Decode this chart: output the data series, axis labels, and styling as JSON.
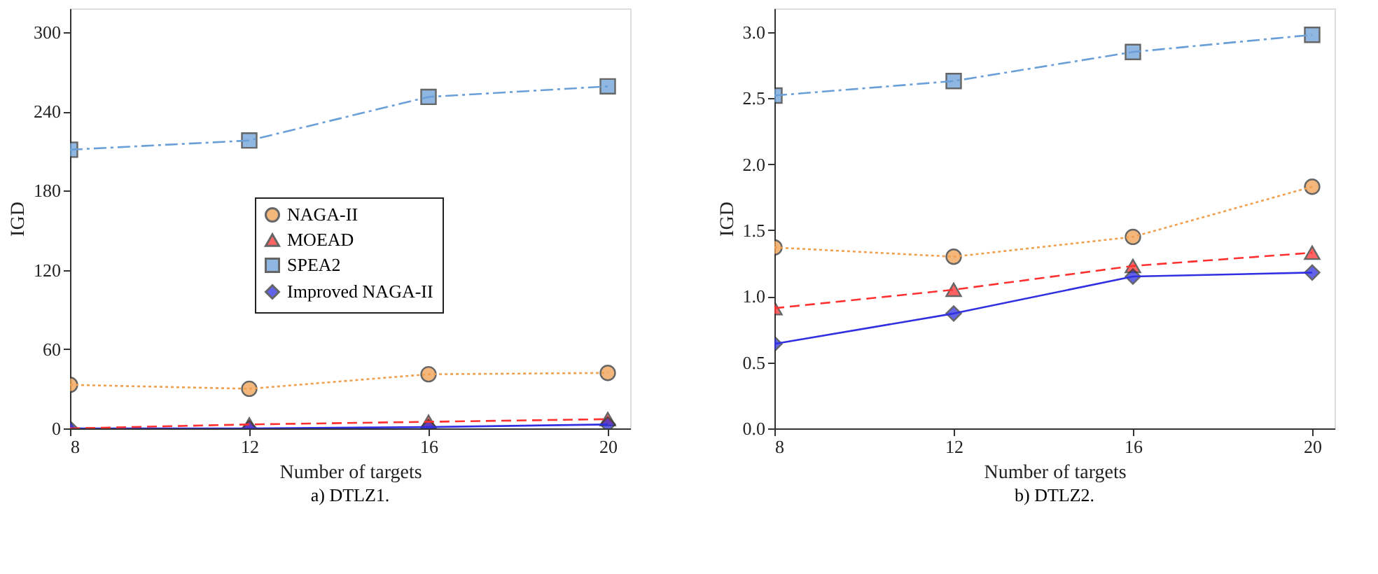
{
  "chart_data": [
    {
      "type": "line",
      "title": "a) DTLZ1.",
      "xlabel": "Number of targets",
      "ylabel": "IGD",
      "x": [
        8,
        12,
        16,
        20
      ],
      "xlim": [
        8,
        20.5
      ],
      "xticks": [
        8,
        12,
        16,
        20
      ],
      "ylim": [
        0,
        318
      ],
      "yticks": [
        0,
        60,
        120,
        180,
        240,
        300
      ],
      "grid": false,
      "legend": "center right",
      "series": [
        {
          "name": "NAGA-II",
          "color": "#f0a050",
          "marker": "circle",
          "line_style": "dotted",
          "values": [
            33,
            30,
            41,
            42
          ]
        },
        {
          "name": "MOEAD",
          "color": "#ff3030",
          "marker": "triangle",
          "line_style": "dashed",
          "values": [
            0,
            3,
            5,
            7
          ]
        },
        {
          "name": "SPEA2",
          "color": "#6a9fd8",
          "marker": "square",
          "line_style": "dashdot",
          "values": [
            211,
            218,
            251,
            259
          ]
        },
        {
          "name": "Improved NAGA-II",
          "color": "#3030e0",
          "marker": "diamond",
          "line_style": "solid",
          "values": [
            0,
            0,
            1,
            3
          ]
        }
      ]
    },
    {
      "type": "line",
      "title": "b) DTLZ2.",
      "xlabel": "Number of targets",
      "ylabel": "IGD",
      "x": [
        8,
        12,
        16,
        20
      ],
      "xlim": [
        8,
        20.5
      ],
      "xticks": [
        8,
        12,
        16,
        20
      ],
      "ylim": [
        0,
        3.18
      ],
      "yticks": [
        {
          "value": 0,
          "label": "0.0"
        },
        0.5,
        {
          "value": 1,
          "label": "1.0"
        },
        1.5,
        {
          "value": 2,
          "label": "2.0"
        },
        2.5,
        {
          "value": 3,
          "label": "3.0"
        }
      ],
      "grid": false,
      "legend": "top left",
      "series": [
        {
          "name": "NAGA-II",
          "color": "#f0a050",
          "marker": "circle",
          "line_style": "dotted",
          "values": [
            1.37,
            1.3,
            1.45,
            1.83
          ]
        },
        {
          "name": "MOEAD",
          "color": "#ff3030",
          "marker": "triangle",
          "line_style": "dashed",
          "values": [
            0.91,
            1.05,
            1.23,
            1.33
          ]
        },
        {
          "name": "SPEA2",
          "color": "#6a9fd8",
          "marker": "square",
          "line_style": "dashdot",
          "values": [
            2.52,
            2.63,
            2.85,
            2.98
          ]
        },
        {
          "name": "Improved NAGA-II",
          "color": "#3030e0",
          "marker": "diamond",
          "line_style": "solid",
          "values": [
            0.64,
            0.87,
            1.15,
            1.18
          ]
        }
      ]
    }
  ]
}
